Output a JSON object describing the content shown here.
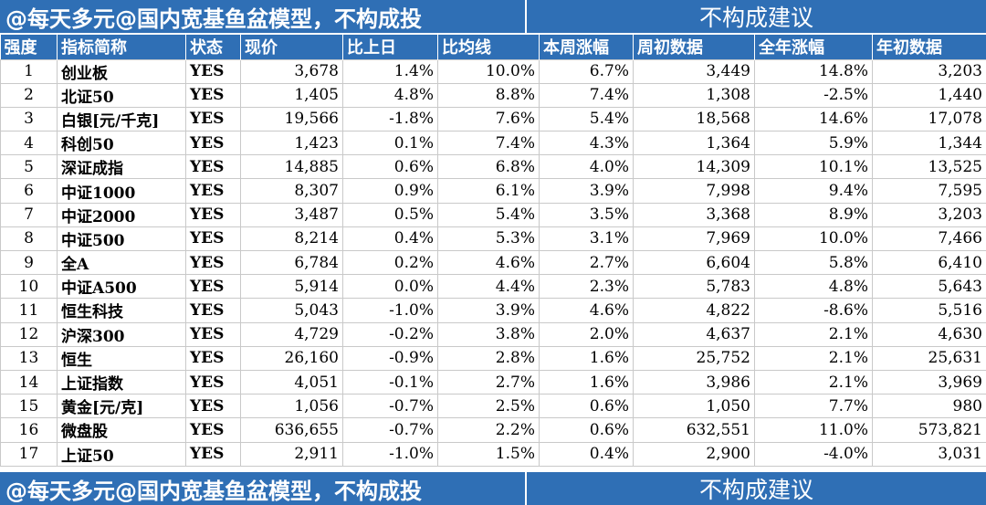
{
  "banner": {
    "left": "@每天多元@国内宽基鱼盆模型，不构成投",
    "right": "不构成建议"
  },
  "headers": [
    "强度",
    "指标简称",
    "状态",
    "现价",
    "比上日",
    "比均线",
    "本周涨幅",
    "周初数据",
    "全年涨幅",
    "年初数据"
  ],
  "rows": [
    [
      "1",
      "创业板",
      "YES",
      "3,678",
      "1.4%",
      "10.0%",
      "6.7%",
      "3,449",
      "14.8%",
      "3,203"
    ],
    [
      "2",
      "北证50",
      "YES",
      "1,405",
      "4.8%",
      "8.8%",
      "7.4%",
      "1,308",
      "-2.5%",
      "1,440"
    ],
    [
      "3",
      "白银[元/千克]",
      "YES",
      "19,566",
      "-1.8%",
      "7.6%",
      "5.4%",
      "18,568",
      "14.6%",
      "17,078"
    ],
    [
      "4",
      "科创50",
      "YES",
      "1,423",
      "0.1%",
      "7.4%",
      "4.3%",
      "1,364",
      "5.9%",
      "1,344"
    ],
    [
      "5",
      "深证成指",
      "YES",
      "14,885",
      "0.6%",
      "6.8%",
      "4.0%",
      "14,309",
      "10.1%",
      "13,525"
    ],
    [
      "6",
      "中证1000",
      "YES",
      "8,307",
      "0.9%",
      "6.1%",
      "3.9%",
      "7,998",
      "9.4%",
      "7,595"
    ],
    [
      "7",
      "中证2000",
      "YES",
      "3,487",
      "0.5%",
      "5.4%",
      "3.5%",
      "3,368",
      "8.9%",
      "3,203"
    ],
    [
      "8",
      "中证500",
      "YES",
      "8,214",
      "0.4%",
      "5.3%",
      "3.1%",
      "7,969",
      "10.0%",
      "7,466"
    ],
    [
      "9",
      "全A",
      "YES",
      "6,784",
      "0.2%",
      "4.6%",
      "2.7%",
      "6,604",
      "5.8%",
      "6,410"
    ],
    [
      "10",
      "中证A500",
      "YES",
      "5,914",
      "0.0%",
      "4.4%",
      "2.3%",
      "5,783",
      "4.8%",
      "5,643"
    ],
    [
      "11",
      "恒生科技",
      "YES",
      "5,043",
      "-1.0%",
      "3.9%",
      "4.6%",
      "4,822",
      "-8.6%",
      "5,516"
    ],
    [
      "12",
      "沪深300",
      "YES",
      "4,729",
      "-0.2%",
      "3.8%",
      "2.0%",
      "4,637",
      "2.1%",
      "4,630"
    ],
    [
      "13",
      "恒生",
      "YES",
      "26,160",
      "-0.9%",
      "2.8%",
      "1.6%",
      "25,752",
      "2.1%",
      "25,631"
    ],
    [
      "14",
      "上证指数",
      "YES",
      "4,051",
      "-0.1%",
      "2.7%",
      "1.6%",
      "3,986",
      "2.1%",
      "3,969"
    ],
    [
      "15",
      "黄金[元/克]",
      "YES",
      "1,056",
      "-0.7%",
      "2.5%",
      "0.6%",
      "1,050",
      "7.7%",
      "980"
    ],
    [
      "16",
      "微盘股",
      "YES",
      "636,655",
      "-0.7%",
      "2.2%",
      "0.6%",
      "632,551",
      "11.0%",
      "573,821"
    ],
    [
      "17",
      "上证50",
      "YES",
      "2,911",
      "-1.0%",
      "1.5%",
      "0.4%",
      "2,900",
      "-4.0%",
      "3,031"
    ]
  ],
  "colors": {
    "header_bg": "#2f6fb5",
    "positive": "#e8001c",
    "negative": "#1a9d2c",
    "state": "#e8001c"
  }
}
